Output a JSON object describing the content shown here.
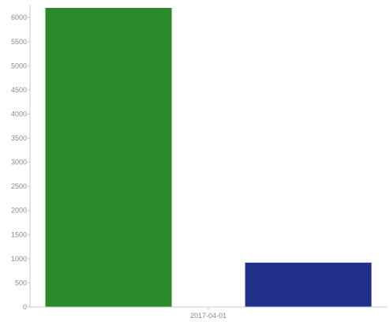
{
  "chart_data": {
    "type": "bar",
    "title": "",
    "xlabel": "",
    "ylabel": "",
    "categories": [
      "2017-04-01"
    ],
    "ylim": [
      0,
      6200
    ],
    "yticks": [
      0,
      500,
      1000,
      1500,
      2000,
      2500,
      3000,
      3500,
      4000,
      4500,
      5000,
      5500,
      6000
    ],
    "grid": false,
    "legend": "none",
    "series": [
      {
        "values": [
          6200
        ],
        "color": "#2a8a2a"
      },
      {
        "values": [
          920
        ],
        "color": "#1f2f8a"
      }
    ]
  }
}
